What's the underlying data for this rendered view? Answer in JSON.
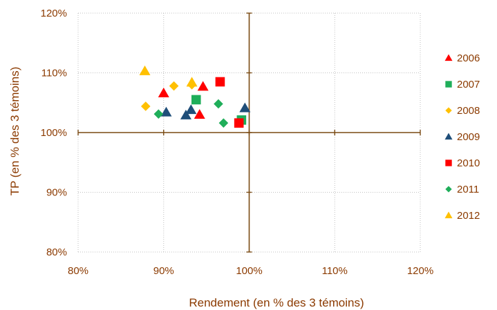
{
  "chart_data": {
    "type": "scatter",
    "title": "",
    "xlabel": "Rendement  (en % des 3 témoins)",
    "ylabel": "TP (en % des 3 témoins)",
    "xlim": [
      80,
      120
    ],
    "ylim": [
      80,
      120
    ],
    "x_tick_labels": [
      "80%",
      "90%",
      "100%",
      "110%",
      "120%"
    ],
    "y_tick_labels": [
      "80%",
      "90%",
      "100%",
      "110%",
      "120%"
    ],
    "x_ticks": [
      80,
      90,
      100,
      110,
      120
    ],
    "y_ticks": [
      80,
      90,
      100,
      110,
      120
    ],
    "grid": "dotted",
    "reference_lines": {
      "x": 100,
      "y": 100
    },
    "legend_position": "right",
    "series": [
      {
        "name": "2006",
        "marker": "triangle",
        "color": "#ff0000",
        "points": [
          [
            90.0,
            106.6
          ],
          [
            94.6,
            107.7
          ],
          [
            94.2,
            103.0
          ]
        ]
      },
      {
        "name": "2007",
        "marker": "square",
        "color": "#1fae5a",
        "points": [
          [
            93.8,
            105.5
          ],
          [
            99.1,
            102.1
          ]
        ]
      },
      {
        "name": "2008",
        "marker": "diamond",
        "color": "#ffc000",
        "points": [
          [
            87.9,
            104.4
          ],
          [
            91.2,
            107.8
          ],
          [
            93.3,
            108.0
          ]
        ]
      },
      {
        "name": "2009",
        "marker": "triangle",
        "color": "#1f4e79",
        "points": [
          [
            90.3,
            103.4
          ],
          [
            92.6,
            102.9
          ],
          [
            93.2,
            103.8
          ],
          [
            99.5,
            104.1
          ]
        ]
      },
      {
        "name": "2010",
        "marker": "square",
        "color": "#ff0000",
        "points": [
          [
            96.6,
            108.5
          ],
          [
            98.8,
            101.6
          ]
        ]
      },
      {
        "name": "2011",
        "marker": "diamond",
        "color": "#1fae5a",
        "points": [
          [
            89.4,
            103.1
          ],
          [
            96.4,
            104.8
          ],
          [
            97.0,
            101.6
          ]
        ]
      },
      {
        "name": "2012",
        "marker": "triangle",
        "color": "#ffc000",
        "points": [
          [
            87.8,
            110.3
          ],
          [
            93.3,
            108.4
          ]
        ]
      }
    ],
    "colors": {
      "axis_text": "#8b3a00",
      "axis_line": "#7a4a12",
      "grid": "#bfbfbf"
    }
  }
}
